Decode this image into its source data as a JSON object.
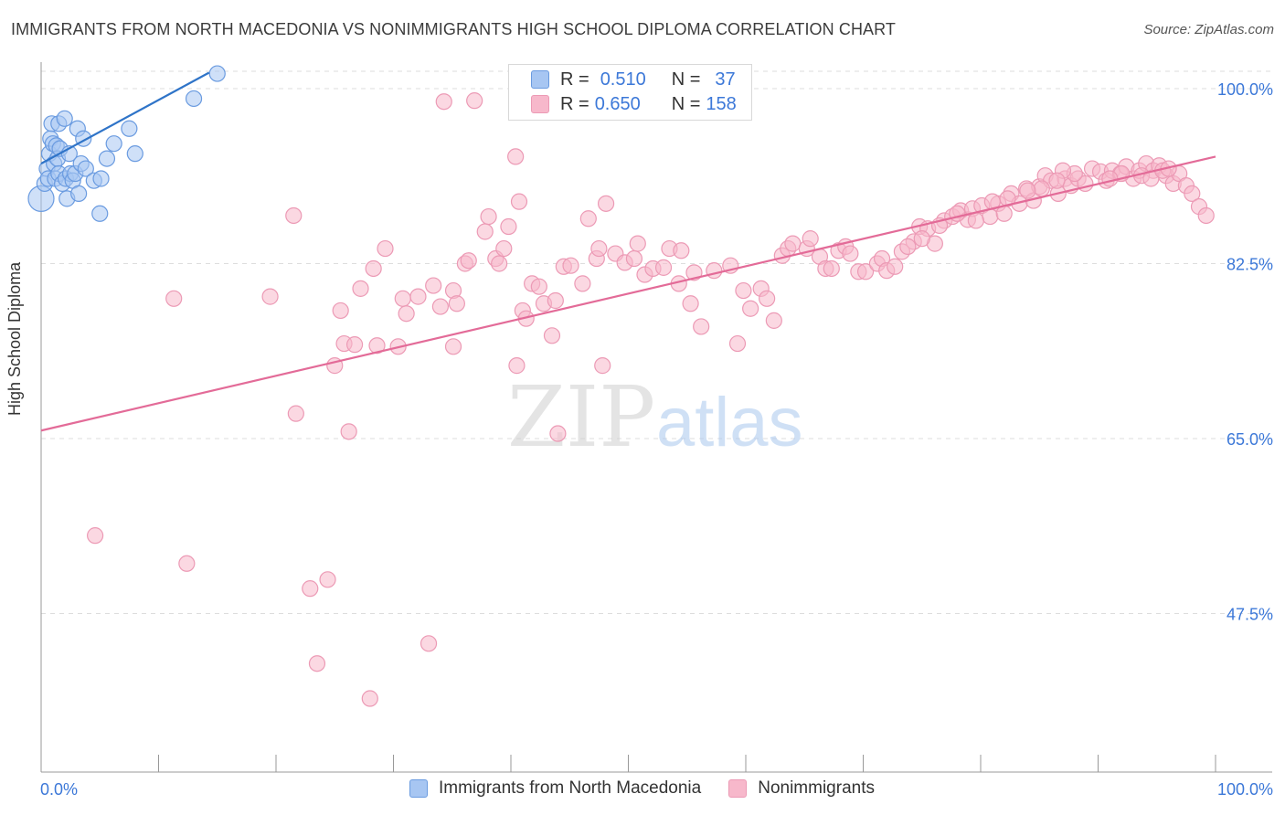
{
  "title": "IMMIGRANTS FROM NORTH MACEDONIA VS NONIMMIGRANTS HIGH SCHOOL DIPLOMA CORRELATION CHART",
  "source": "Source: ZipAtlas.com",
  "watermark": {
    "zip": "ZIP",
    "atlas": "atlas"
  },
  "legend": {
    "series1": {
      "r_label": "R =",
      "r_value": "0.510",
      "n_label": "N =",
      "n_value": "37"
    },
    "series2": {
      "r_label": "R =",
      "r_value": "0.650",
      "n_label": "N =",
      "n_value": "158"
    }
  },
  "bottom_legend": [
    "Immigrants from North Macedonia",
    "Nonimmigrants"
  ],
  "colors": {
    "blue_fill": "#a7c6f2",
    "blue_stroke": "#6a9be0",
    "blue_line": "#2f74c8",
    "pink_fill": "#f7b8cb",
    "pink_stroke": "#ec9ab5",
    "pink_line": "#e36b98",
    "axis_text": "#3c78d8",
    "grid": "#dddddd"
  },
  "chart_data": {
    "type": "scatter",
    "title": "IMMIGRANTS FROM NORTH MACEDONIA VS NONIMMIGRANTS HIGH SCHOOL DIPLOMA CORRELATION CHART",
    "xlabel": "",
    "ylabel": "High School Diploma",
    "xlim": [
      0,
      100
    ],
    "ylim": [
      29.5,
      102
    ],
    "x_tick_labels": [
      "0.0%",
      "100.0%"
    ],
    "y_ticks": [
      100.0,
      82.5,
      65.0,
      47.5
    ],
    "y_tick_labels": [
      "100.0%",
      "82.5%",
      "65.0%",
      "47.5%"
    ],
    "series": [
      {
        "name": "Immigrants from North Macedonia",
        "color": "blue",
        "trend": {
          "x": [
            0,
            14.3
          ],
          "y": [
            92.5,
            101.6
          ]
        },
        "points": [
          [
            0.0,
            89.0
          ],
          [
            0.3,
            90.5
          ],
          [
            0.5,
            92.0
          ],
          [
            0.6,
            91.0
          ],
          [
            0.7,
            93.5
          ],
          [
            0.8,
            95.0
          ],
          [
            0.9,
            96.5
          ],
          [
            1.0,
            94.5
          ],
          [
            1.1,
            92.5
          ],
          [
            1.2,
            91.0
          ],
          [
            1.3,
            94.3
          ],
          [
            1.4,
            93.0
          ],
          [
            1.5,
            96.5
          ],
          [
            1.5,
            91.5
          ],
          [
            1.6,
            94.0
          ],
          [
            1.8,
            90.5
          ],
          [
            2.0,
            97.0
          ],
          [
            2.1,
            91.0
          ],
          [
            2.2,
            89.0
          ],
          [
            2.4,
            93.5
          ],
          [
            2.5,
            91.5
          ],
          [
            2.7,
            90.8
          ],
          [
            2.9,
            91.5
          ],
          [
            3.1,
            96.0
          ],
          [
            3.2,
            89.5
          ],
          [
            3.4,
            92.5
          ],
          [
            3.6,
            95.0
          ],
          [
            3.8,
            92.0
          ],
          [
            4.5,
            90.8
          ],
          [
            5.0,
            87.5
          ],
          [
            5.1,
            91.0
          ],
          [
            5.6,
            93.0
          ],
          [
            6.2,
            94.5
          ],
          [
            7.5,
            96.0
          ],
          [
            8.0,
            93.5
          ],
          [
            13.0,
            99.0
          ],
          [
            15.0,
            101.5
          ]
        ]
      },
      {
        "name": "Nonimmigrants",
        "color": "pink",
        "trend": {
          "x": [
            0,
            100
          ],
          "y": [
            65.8,
            93.2
          ]
        },
        "points": [
          [
            4.6,
            55.3
          ],
          [
            11.3,
            79.0
          ],
          [
            12.4,
            52.5
          ],
          [
            19.5,
            79.2
          ],
          [
            21.5,
            87.3
          ],
          [
            21.7,
            67.5
          ],
          [
            22.9,
            50.0
          ],
          [
            23.5,
            42.5
          ],
          [
            24.4,
            50.9
          ],
          [
            25.0,
            72.3
          ],
          [
            25.5,
            77.8
          ],
          [
            25.8,
            74.5
          ],
          [
            26.2,
            65.7
          ],
          [
            26.7,
            74.4
          ],
          [
            27.2,
            80.0
          ],
          [
            28.0,
            39.0
          ],
          [
            28.3,
            82.0
          ],
          [
            28.6,
            74.3
          ],
          [
            29.3,
            84.0
          ],
          [
            30.4,
            74.2
          ],
          [
            30.8,
            79.0
          ],
          [
            31.1,
            77.5
          ],
          [
            32.1,
            79.2
          ],
          [
            33.0,
            44.5
          ],
          [
            33.4,
            80.3
          ],
          [
            34.0,
            78.2
          ],
          [
            34.3,
            98.7
          ],
          [
            35.1,
            74.2
          ],
          [
            35.1,
            79.8
          ],
          [
            35.4,
            78.5
          ],
          [
            36.1,
            82.5
          ],
          [
            36.4,
            82.8
          ],
          [
            36.9,
            98.8
          ],
          [
            37.8,
            85.7
          ],
          [
            38.1,
            87.2
          ],
          [
            38.7,
            83.0
          ],
          [
            39.0,
            82.5
          ],
          [
            39.4,
            84.0
          ],
          [
            39.8,
            86.2
          ],
          [
            40.4,
            93.2
          ],
          [
            40.5,
            72.3
          ],
          [
            40.7,
            88.7
          ],
          [
            41.0,
            77.8
          ],
          [
            41.3,
            77.0
          ],
          [
            41.8,
            80.5
          ],
          [
            42.4,
            80.2
          ],
          [
            42.8,
            78.5
          ],
          [
            43.5,
            75.3
          ],
          [
            43.8,
            78.8
          ],
          [
            44.0,
            65.5
          ],
          [
            44.5,
            82.2
          ],
          [
            45.1,
            82.3
          ],
          [
            46.1,
            80.5
          ],
          [
            46.6,
            87.0
          ],
          [
            47.3,
            83.0
          ],
          [
            47.5,
            84.0
          ],
          [
            47.8,
            72.3
          ],
          [
            48.1,
            88.5
          ],
          [
            48.9,
            83.5
          ],
          [
            49.7,
            82.6
          ],
          [
            50.5,
            83.0
          ],
          [
            50.8,
            84.5
          ],
          [
            51.4,
            81.4
          ],
          [
            52.1,
            82.0
          ],
          [
            53.0,
            82.1
          ],
          [
            53.5,
            84.0
          ],
          [
            54.3,
            80.5
          ],
          [
            54.5,
            83.8
          ],
          [
            55.3,
            78.5
          ],
          [
            55.6,
            81.6
          ],
          [
            56.2,
            76.2
          ],
          [
            57.3,
            81.8
          ],
          [
            58.7,
            82.3
          ],
          [
            59.3,
            74.5
          ],
          [
            59.8,
            79.8
          ],
          [
            60.4,
            78.0
          ],
          [
            61.3,
            80.0
          ],
          [
            61.8,
            79.0
          ],
          [
            62.4,
            76.8
          ],
          [
            63.1,
            83.3
          ],
          [
            63.6,
            84.0
          ],
          [
            64.0,
            84.5
          ],
          [
            65.2,
            84.0
          ],
          [
            65.5,
            85.0
          ],
          [
            66.3,
            83.2
          ],
          [
            66.8,
            82.0
          ],
          [
            67.3,
            82.0
          ],
          [
            67.9,
            83.8
          ],
          [
            68.5,
            84.2
          ],
          [
            68.9,
            83.5
          ],
          [
            69.6,
            81.7
          ],
          [
            70.2,
            81.7
          ],
          [
            71.2,
            82.5
          ],
          [
            71.6,
            83.0
          ],
          [
            72.0,
            81.8
          ],
          [
            72.7,
            82.2
          ],
          [
            73.3,
            83.7
          ],
          [
            74.3,
            84.7
          ],
          [
            74.8,
            86.2
          ],
          [
            75.5,
            86.0
          ],
          [
            76.1,
            84.5
          ],
          [
            76.9,
            86.8
          ],
          [
            77.6,
            87.2
          ],
          [
            78.3,
            87.8
          ],
          [
            78.9,
            86.9
          ],
          [
            79.3,
            88.0
          ],
          [
            80.1,
            88.3
          ],
          [
            80.8,
            87.2
          ],
          [
            81.5,
            88.5
          ],
          [
            82.0,
            87.5
          ],
          [
            82.6,
            89.5
          ],
          [
            83.3,
            88.5
          ],
          [
            83.9,
            90.0
          ],
          [
            84.5,
            88.8
          ],
          [
            85.0,
            90.2
          ],
          [
            85.5,
            91.3
          ],
          [
            86.0,
            90.8
          ],
          [
            86.6,
            89.5
          ],
          [
            87.2,
            91.0
          ],
          [
            87.7,
            90.3
          ],
          [
            88.3,
            91.0
          ],
          [
            88.9,
            90.5
          ],
          [
            89.5,
            92.0
          ],
          [
            90.2,
            91.7
          ],
          [
            90.7,
            90.8
          ],
          [
            91.2,
            91.8
          ],
          [
            91.9,
            91.5
          ],
          [
            92.4,
            92.2
          ],
          [
            93.0,
            91.0
          ],
          [
            93.5,
            91.8
          ],
          [
            94.1,
            92.5
          ],
          [
            94.7,
            91.8
          ],
          [
            95.2,
            92.3
          ],
          [
            95.8,
            91.3
          ],
          [
            96.4,
            90.5
          ],
          [
            96.9,
            91.5
          ],
          [
            97.5,
            90.3
          ],
          [
            98.0,
            89.5
          ],
          [
            98.6,
            88.2
          ],
          [
            99.2,
            87.3
          ],
          [
            92.0,
            91.5
          ],
          [
            88.0,
            91.5
          ],
          [
            87.0,
            91.8
          ],
          [
            91.0,
            91.0
          ],
          [
            93.7,
            91.3
          ],
          [
            94.5,
            91.0
          ],
          [
            95.5,
            91.8
          ],
          [
            96.0,
            92.0
          ],
          [
            86.5,
            90.8
          ],
          [
            85.2,
            90.0
          ],
          [
            84.0,
            89.8
          ],
          [
            82.3,
            89.0
          ],
          [
            81.0,
            88.7
          ],
          [
            79.6,
            86.8
          ],
          [
            78.0,
            87.5
          ],
          [
            76.5,
            86.3
          ],
          [
            75.0,
            85.0
          ],
          [
            73.8,
            84.2
          ]
        ]
      }
    ]
  }
}
